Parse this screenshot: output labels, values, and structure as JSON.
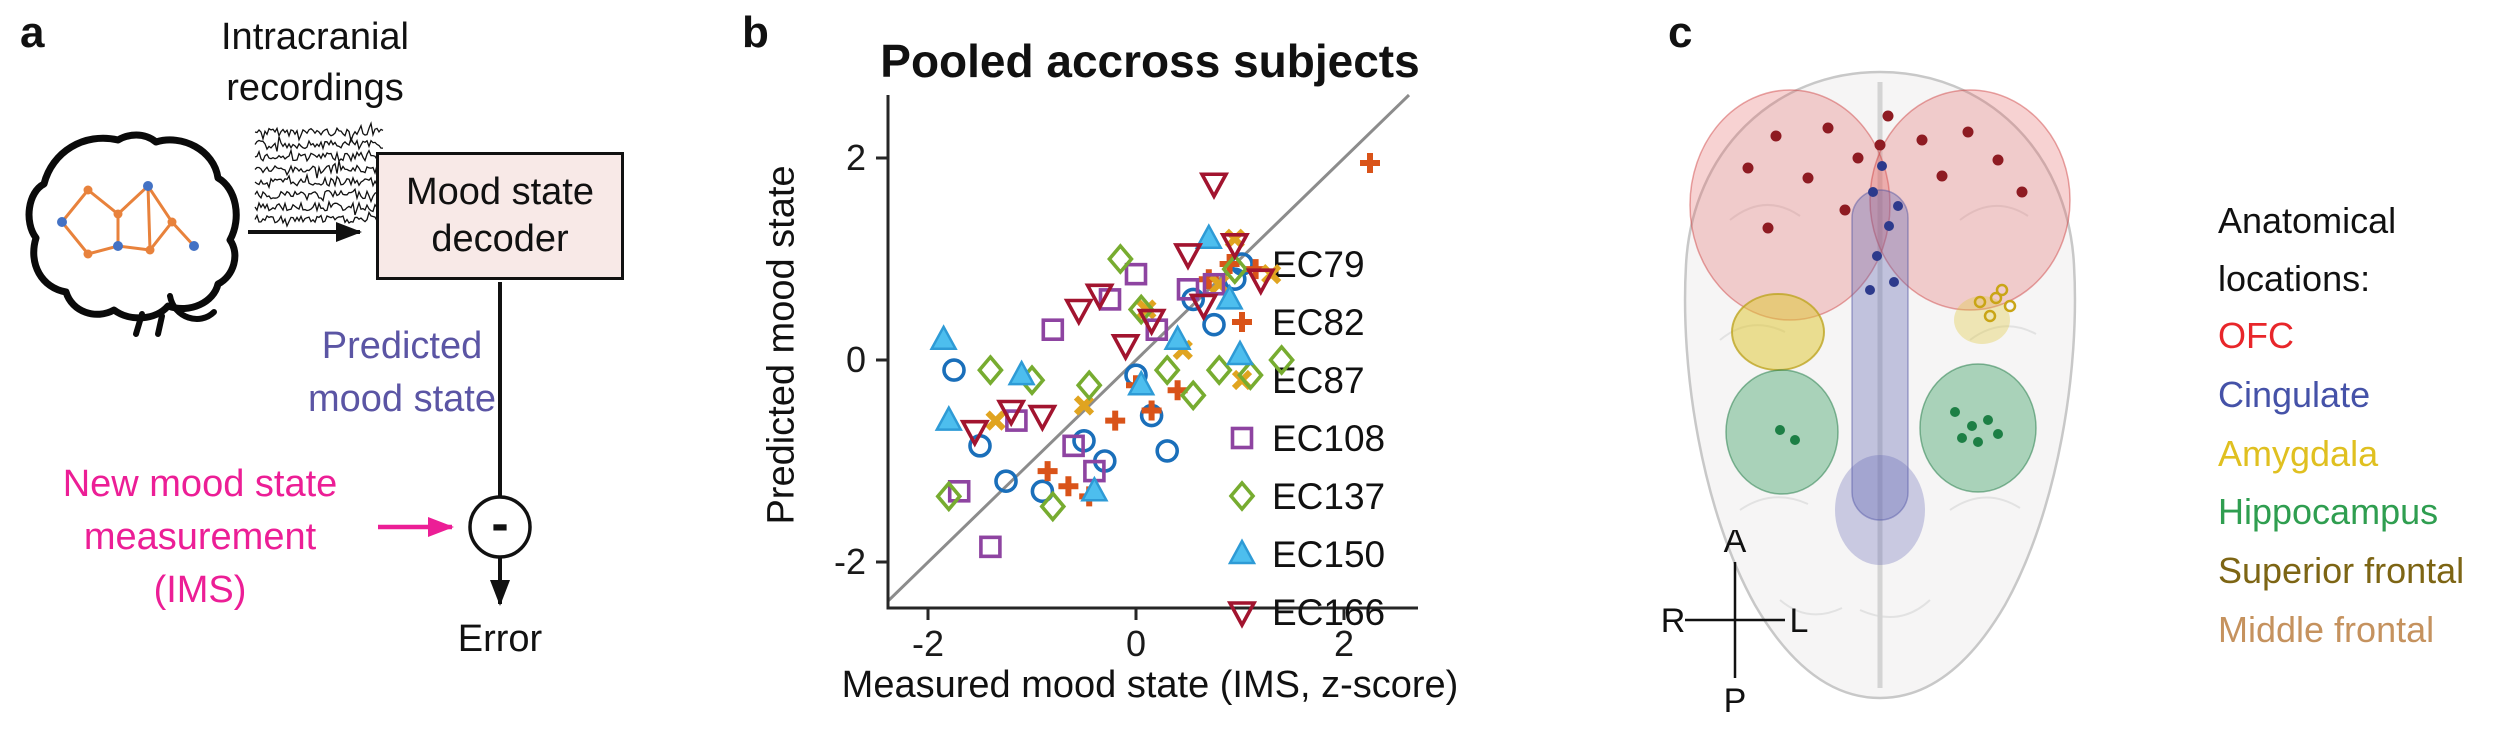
{
  "panel_a": {
    "label": "a",
    "recordings_label": "Intracranial recordings",
    "decoder_label": "Mood state decoder",
    "predicted_label": "Predicted mood state",
    "new_measurement_label": "New mood state measurement (IMS)",
    "minus_sign": "-",
    "error_label": "Error",
    "colors": {
      "predicted_text": "#5b55a4",
      "new_measurement_text": "#ec1e96",
      "decoder_box_fill": "#f8e9e7"
    }
  },
  "panel_b": {
    "label": "b",
    "chart_data": {
      "type": "scatter",
      "title": "Pooled accross subjects",
      "xlabel": "Measured mood state (IMS, z-score)",
      "ylabel": "Predicted mood state",
      "xlim": [
        -2.4,
        2.65
      ],
      "ylim": [
        -2.45,
        2.65
      ],
      "xticks": [
        -2,
        0,
        2
      ],
      "yticks": [
        -2,
        0,
        2
      ],
      "identity_line": true,
      "legend_position": "right",
      "identity_line_color": "#8c8c8c",
      "series": [
        {
          "name": "EC79",
          "marker": "circle",
          "filled": false,
          "color": "#1A6FBA",
          "points": [
            [
              -1.75,
              -0.1
            ],
            [
              -1.5,
              -0.85
            ],
            [
              -1.25,
              -1.2
            ],
            [
              -0.9,
              -1.3
            ],
            [
              -0.5,
              -0.8
            ],
            [
              -0.3,
              -1.0
            ],
            [
              0.0,
              -0.15
            ],
            [
              0.15,
              -0.55
            ],
            [
              0.3,
              -0.9
            ],
            [
              0.55,
              0.6
            ],
            [
              0.75,
              0.35
            ],
            [
              0.95,
              0.8
            ]
          ]
        },
        {
          "name": "EC82",
          "marker": "plus",
          "filled": true,
          "color": "#D95319",
          "points": [
            [
              -0.85,
              -1.1
            ],
            [
              -0.65,
              -1.25
            ],
            [
              -0.45,
              -1.35
            ],
            [
              -0.2,
              -0.6
            ],
            [
              0.0,
              -0.25
            ],
            [
              0.15,
              -0.5
            ],
            [
              0.4,
              -0.3
            ],
            [
              0.7,
              0.8
            ],
            [
              0.9,
              0.95
            ],
            [
              1.15,
              0.9
            ],
            [
              2.25,
              1.95
            ]
          ]
        },
        {
          "name": "EC87",
          "marker": "x",
          "filled": true,
          "color": "#E0A420",
          "points": [
            [
              -1.35,
              -0.6
            ],
            [
              -0.5,
              -0.45
            ],
            [
              0.1,
              0.5
            ],
            [
              0.45,
              0.1
            ],
            [
              0.8,
              0.75
            ],
            [
              1.3,
              0.85
            ],
            [
              0.95,
              1.2
            ]
          ]
        },
        {
          "name": "EC108",
          "marker": "square",
          "filled": false,
          "color": "#8E44A1",
          "points": [
            [
              -1.7,
              -1.3
            ],
            [
              -1.4,
              -1.85
            ],
            [
              -1.15,
              -0.6
            ],
            [
              -0.8,
              0.3
            ],
            [
              -0.6,
              -0.85
            ],
            [
              -0.4,
              -1.1
            ],
            [
              -0.25,
              0.6
            ],
            [
              0.0,
              0.85
            ],
            [
              0.2,
              0.3
            ],
            [
              0.5,
              0.7
            ],
            [
              0.75,
              0.75
            ]
          ]
        },
        {
          "name": "EC137",
          "marker": "diamond",
          "filled": false,
          "color": "#77AC30",
          "points": [
            [
              -1.8,
              -1.35
            ],
            [
              -1.4,
              -0.1
            ],
            [
              -1.0,
              -0.2
            ],
            [
              -0.8,
              -1.45
            ],
            [
              -0.45,
              -0.25
            ],
            [
              -0.15,
              1.0
            ],
            [
              0.05,
              0.5
            ],
            [
              0.3,
              -0.1
            ],
            [
              0.55,
              -0.35
            ],
            [
              0.8,
              -0.1
            ],
            [
              1.1,
              -0.15
            ],
            [
              1.4,
              0.0
            ],
            [
              0.95,
              0.9
            ]
          ]
        },
        {
          "name": "EC150",
          "marker": "triangle-up",
          "filled": true,
          "color": "#4DBEEE",
          "edge": "#2E9BD6",
          "points": [
            [
              -1.85,
              0.2
            ],
            [
              -1.8,
              -0.6
            ],
            [
              -1.1,
              -0.15
            ],
            [
              -0.4,
              -1.3
            ],
            [
              0.05,
              -0.25
            ],
            [
              0.4,
              0.2
            ],
            [
              0.7,
              1.2
            ],
            [
              0.9,
              0.6
            ],
            [
              1.0,
              0.05
            ]
          ]
        },
        {
          "name": "EC166",
          "marker": "triangle-down",
          "filled": false,
          "color": "#A2142F",
          "points": [
            [
              -1.55,
              -0.7
            ],
            [
              -1.2,
              -0.5
            ],
            [
              -0.9,
              -0.55
            ],
            [
              -0.55,
              0.5
            ],
            [
              -0.35,
              0.65
            ],
            [
              -0.1,
              0.15
            ],
            [
              0.15,
              0.4
            ],
            [
              0.5,
              1.05
            ],
            [
              0.75,
              1.75
            ],
            [
              0.95,
              1.15
            ],
            [
              1.2,
              0.8
            ],
            [
              0.65,
              0.55
            ]
          ]
        }
      ]
    }
  },
  "panel_c": {
    "label": "c",
    "legend_title": "Anatomical locations:",
    "regions": [
      {
        "label": "OFC",
        "color": "#E8262A"
      },
      {
        "label": "Cingulate",
        "color": "#4552A8"
      },
      {
        "label": "Amygdala",
        "color": "#E0C020"
      },
      {
        "label": "Hippocampus",
        "color": "#2F9E50"
      },
      {
        "label": "Superior frontal",
        "color": "#7D6514"
      },
      {
        "label": "Middle frontal",
        "color": "#C5925E"
      }
    ],
    "compass": {
      "top": "A",
      "left": "R",
      "right": "L",
      "bottom": "P"
    }
  }
}
